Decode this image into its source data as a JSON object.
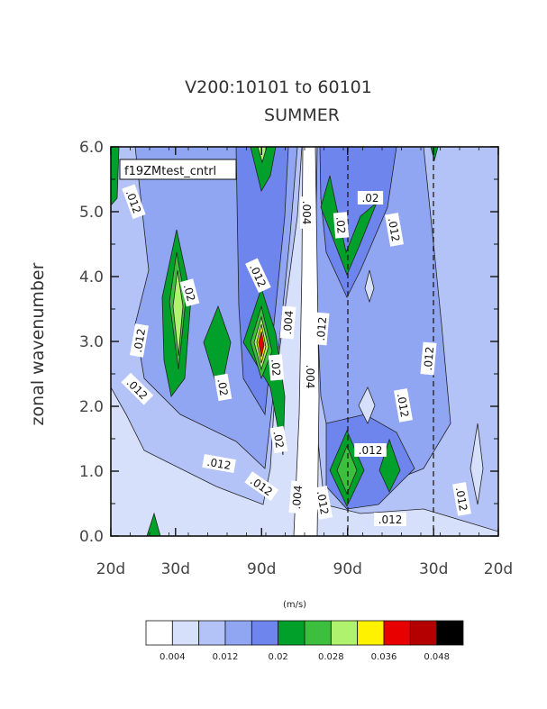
{
  "chart_data": {
    "type": "heatmap",
    "title": "V200:10101 to 60101",
    "subtitle": "SUMMER",
    "panel_label": "f19ZMtest_cntrl",
    "ylabel": "zonal wavenumber",
    "xlabel": "",
    "units": "(m/s)",
    "ylim": [
      0,
      6
    ],
    "y_ticks": [
      "0.0",
      "1.0",
      "2.0",
      "3.0",
      "4.0",
      "5.0",
      "6.0"
    ],
    "x_ticks": [
      "20d",
      "30d",
      "90d",
      "90d",
      "30d",
      "20d"
    ],
    "x_tick_positions": [
      -0.05,
      -0.0333,
      -0.0111,
      0.0111,
      0.0333,
      0.05
    ],
    "xlim": [
      -0.05,
      0.05
    ],
    "dashed_lines_x": [
      0.0111,
      0.0333
    ],
    "levels": [
      0.004,
      0.008,
      0.012,
      0.016,
      0.02,
      0.024,
      0.028,
      0.032,
      0.036,
      0.04,
      0.044,
      0.048
    ],
    "colors": [
      "#ffffff",
      "#d7e0fb",
      "#b4c3f7",
      "#91a6f3",
      "#6e85ee",
      "#00a02a",
      "#3cbf3c",
      "#aef26e",
      "#fff200",
      "#e80000",
      "#b40000",
      "#000000"
    ],
    "colorbar_labels": [
      "0.004",
      "0.012",
      "0.02",
      "0.028",
      "0.036",
      "0.048"
    ],
    "contour_labels": [
      ".012",
      ".012",
      ".012",
      ".02",
      ".012",
      ".02",
      ".012",
      ".012",
      ".02",
      ".02",
      ".004",
      ".004",
      ".004",
      ".004",
      ".012",
      ".012",
      ".02",
      ".02",
      ".012",
      ".012",
      ".012",
      ".012",
      ".012",
      ".012"
    ]
  }
}
